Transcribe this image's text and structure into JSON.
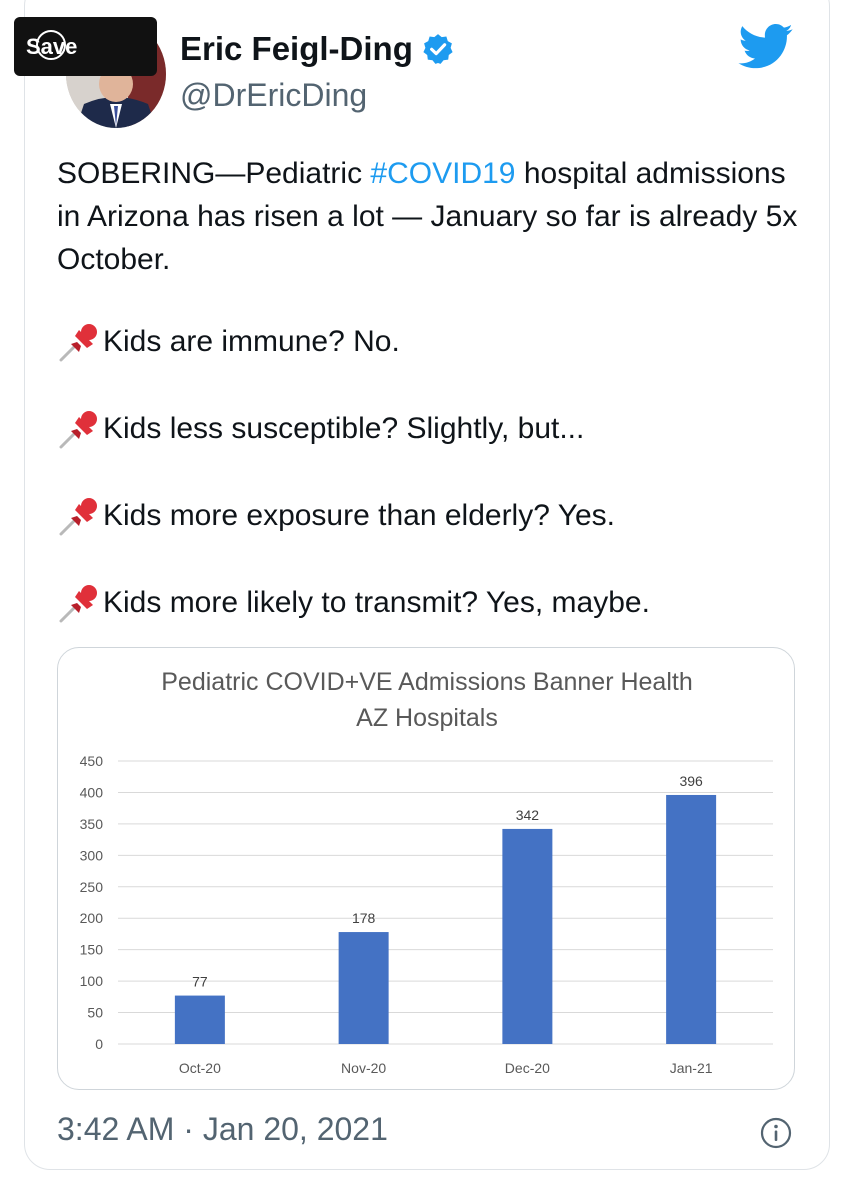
{
  "save_button": {
    "label": "Save"
  },
  "author": {
    "name": "Eric Feigl-Ding",
    "handle": "@DrEricDing",
    "verified_icon": "verified-badge-icon"
  },
  "tweet": {
    "text_part1": "SOBERING—Pediatric ",
    "hashtag": "#COVID19",
    "text_part2": " hospital admissions in Arizona has risen a lot — January so far is already 5x October.",
    "bullets": [
      "Kids are immune? No.",
      "Kids less susceptible? Slightly, but...",
      "Kids more exposure than elderly? Yes.",
      "Kids more likely to transmit? Yes, maybe."
    ],
    "bullet_icon": "pushpin-icon",
    "timestamp": "3:42 AM · Jan 20, 2021"
  },
  "colors": {
    "accent": "#1d9bf0",
    "bar": "#4472c4",
    "text": "#0f1419",
    "secondary": "#536471"
  },
  "chart_data": {
    "type": "bar",
    "title": "Pediatric COVID+VE Admissions Banner Health",
    "subtitle": "AZ Hospitals",
    "categories": [
      "Oct-20",
      "Nov-20",
      "Dec-20",
      "Jan-21"
    ],
    "values": [
      77,
      178,
      342,
      396
    ],
    "yticks": [
      0,
      50,
      100,
      150,
      200,
      250,
      300,
      350,
      400,
      450
    ],
    "ylim": [
      0,
      450
    ],
    "xlabel": "",
    "ylabel": "",
    "grid": true
  }
}
